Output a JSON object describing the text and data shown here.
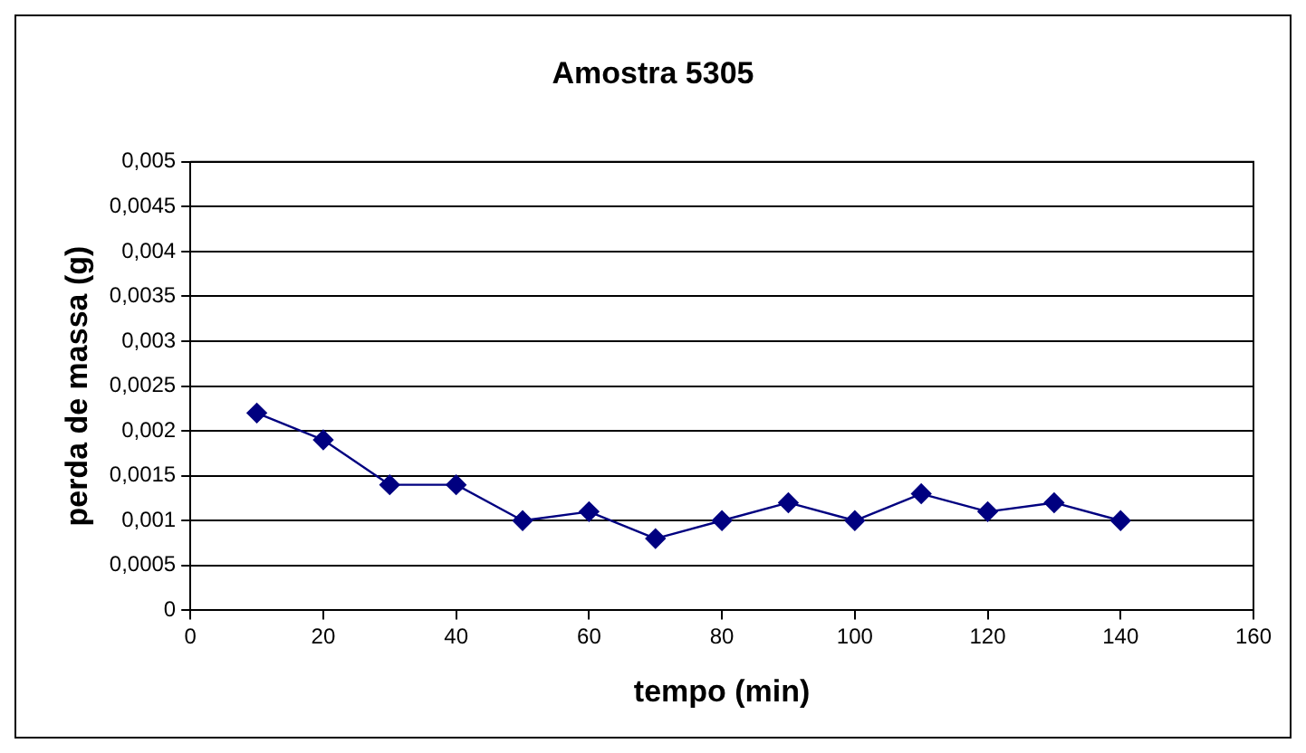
{
  "chart_data": {
    "type": "line",
    "title": "Amostra 5305",
    "xlabel": "tempo (min)",
    "ylabel": "perda de massa (g)",
    "x": [
      10,
      20,
      30,
      40,
      50,
      60,
      70,
      80,
      90,
      100,
      110,
      120,
      130,
      140
    ],
    "series": [
      {
        "color": "#000080",
        "values": [
          0.0022,
          0.0019,
          0.0014,
          0.0014,
          0.001,
          0.0011,
          0.0008,
          0.001,
          0.0012,
          0.001,
          0.0013,
          0.0011,
          0.0012,
          0.001
        ]
      }
    ],
    "xlim": [
      0,
      160
    ],
    "xticks": [
      0,
      20,
      40,
      60,
      80,
      100,
      120,
      140,
      160
    ],
    "ylim": [
      0,
      0.005
    ],
    "yticks": [
      {
        "value": 0,
        "label": "0"
      },
      {
        "value": 0.0005,
        "label": "0,0005"
      },
      {
        "value": 0.001,
        "label": "0,001"
      },
      {
        "value": 0.0015,
        "label": "0,0015"
      },
      {
        "value": 0.002,
        "label": "0,002"
      },
      {
        "value": 0.0025,
        "label": "0,0025"
      },
      {
        "value": 0.003,
        "label": "0,003"
      },
      {
        "value": 0.0035,
        "label": "0,0035"
      },
      {
        "value": 0.004,
        "label": "0,004"
      },
      {
        "value": 0.0045,
        "label": "0,0045"
      },
      {
        "value": 0.005,
        "label": "0,005"
      }
    ],
    "grid": "y",
    "legend": false,
    "marker": "diamond",
    "line_style": "solid"
  }
}
